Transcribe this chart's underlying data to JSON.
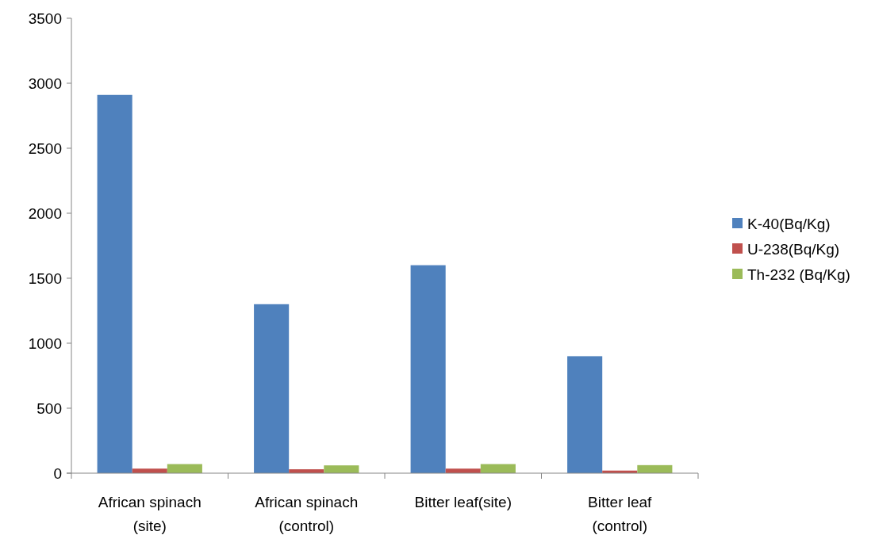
{
  "chart_data": {
    "type": "bar",
    "categories": [
      "African spinach\n(site)",
      "African spinach\n(control)",
      "Bitter leaf(site)",
      "Bitter leaf\n(control)"
    ],
    "series": [
      {
        "name": "K-40(Bq/Kg)",
        "color": "#4f81bd",
        "values": [
          2910,
          1300,
          1600,
          900
        ]
      },
      {
        "name": "U-238(Bq/Kg)",
        "color": "#c0504d",
        "values": [
          35,
          30,
          35,
          20
        ]
      },
      {
        "name": "Th-232 (Bq/Kg)",
        "color": "#9bbb59",
        "values": [
          70,
          60,
          70,
          62
        ]
      }
    ],
    "ylim": [
      0,
      3500
    ],
    "yticks": [
      0,
      500,
      1000,
      1500,
      2000,
      2500,
      3000,
      3500
    ],
    "grid": false,
    "legend": "right"
  }
}
